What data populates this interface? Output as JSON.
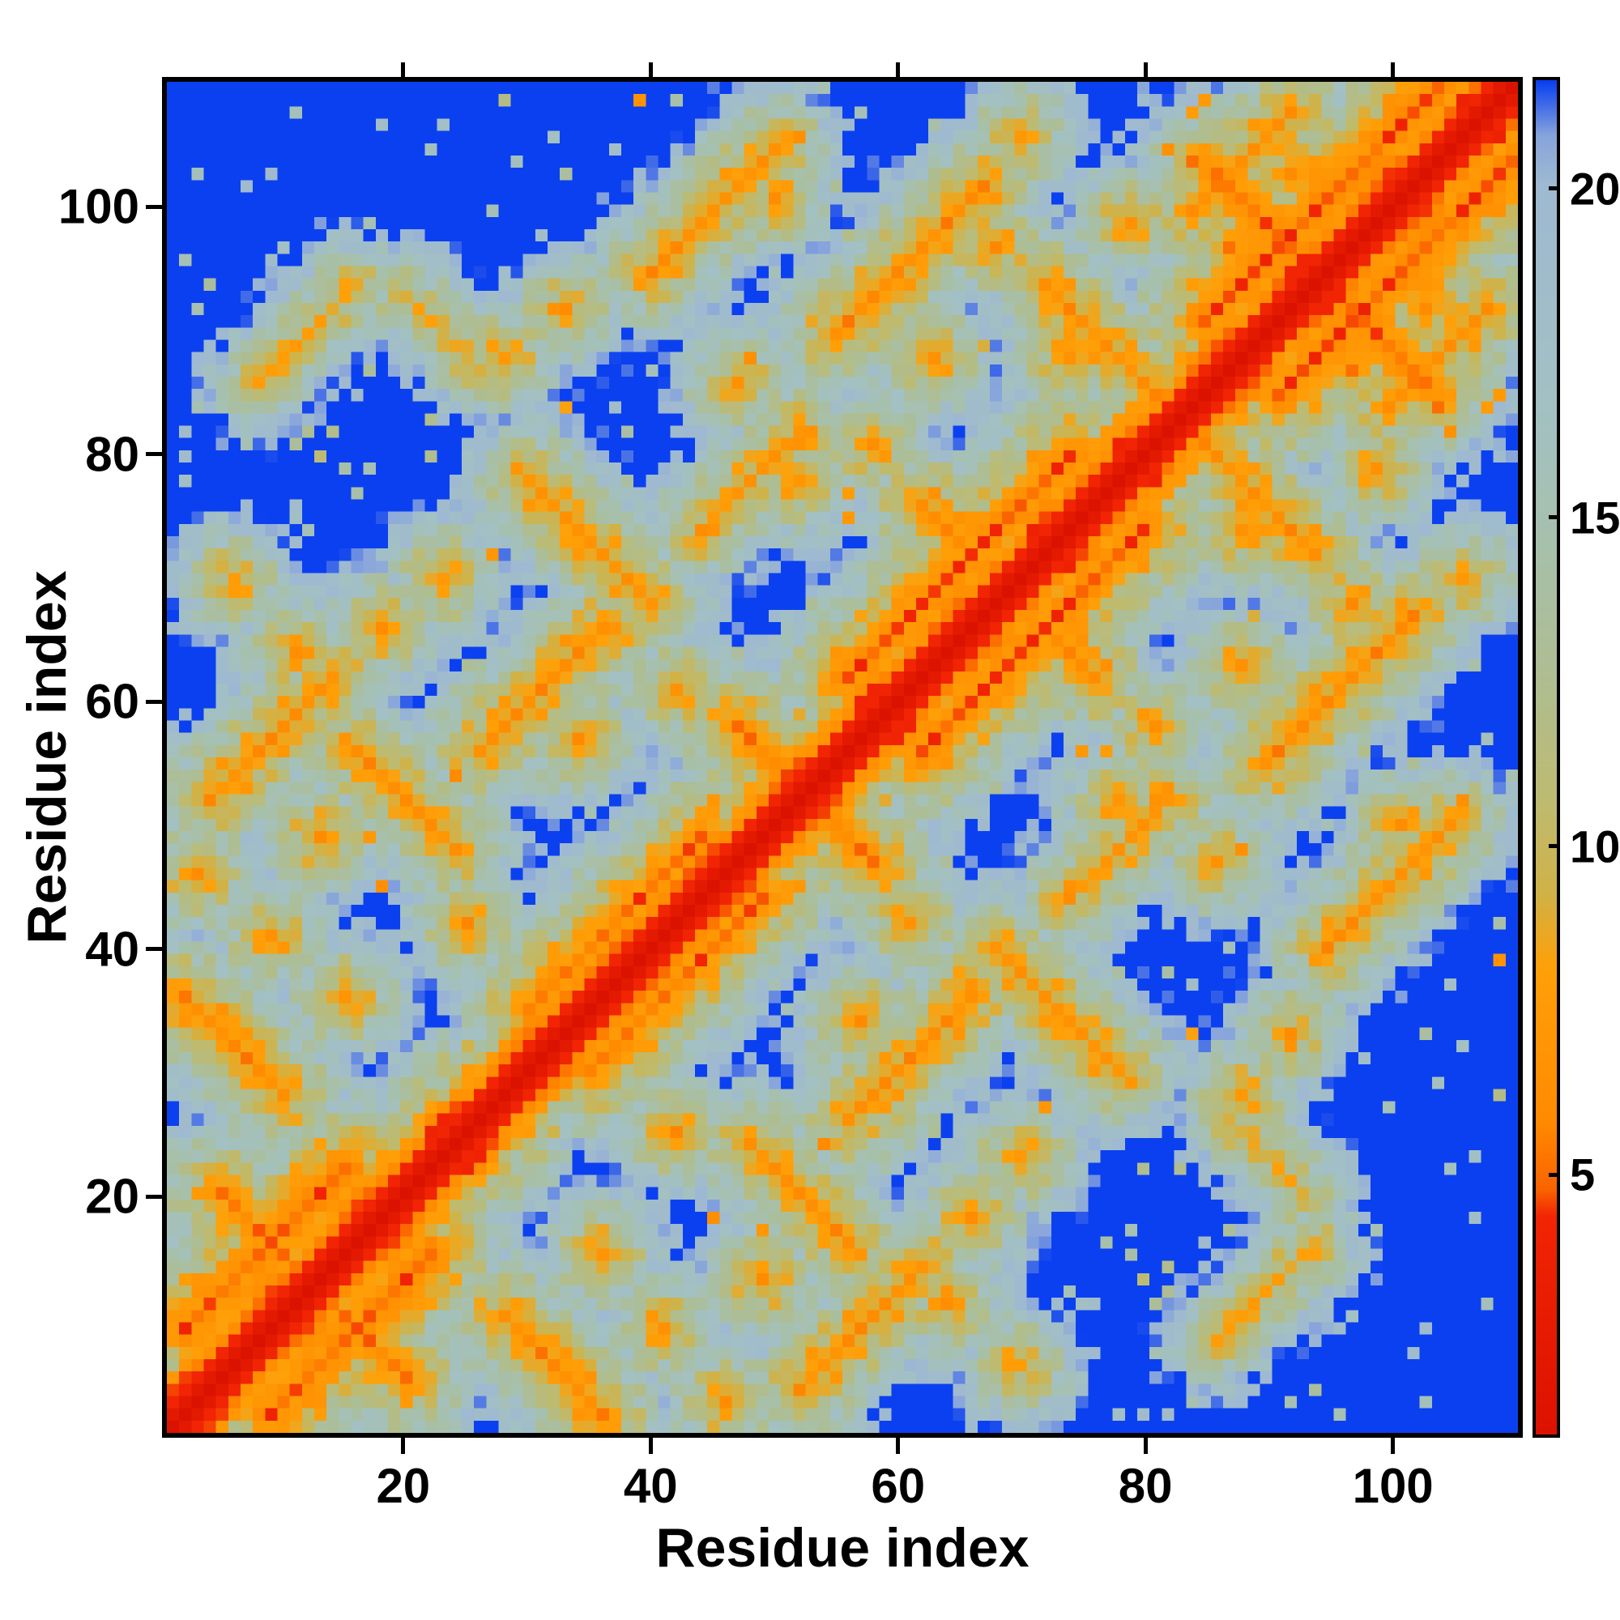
{
  "figure": {
    "background": "#ffffff",
    "frame_color": "#000000"
  },
  "chart_data": {
    "type": "heatmap",
    "title": "",
    "xlabel": "Residue index",
    "ylabel": "Residue index",
    "x_ticks": [
      20,
      40,
      60,
      80,
      100
    ],
    "y_ticks": [
      20,
      40,
      60,
      80,
      100
    ],
    "n_residues": 110,
    "x_range": [
      1,
      110
    ],
    "y_range": [
      1,
      110
    ],
    "origin": "lower-left",
    "grid": false,
    "legend": "none",
    "vmin": 1,
    "vmax": 21.7,
    "colorbar": {
      "position": "right",
      "ticks": [
        5,
        10,
        15,
        20
      ]
    },
    "colormap": {
      "over": "#0b40f0",
      "stops": [
        [
          0.0,
          "#dc1200"
        ],
        [
          0.16,
          "#f12404"
        ],
        [
          0.18,
          "#fa6300"
        ],
        [
          0.23,
          "#ff8a00"
        ],
        [
          0.345,
          "#ffa008"
        ],
        [
          0.4,
          "#d0b248"
        ],
        [
          0.47,
          "#bdbb72"
        ],
        [
          0.56,
          "#aebd92"
        ],
        [
          0.66,
          "#a7c0ac"
        ],
        [
          0.76,
          "#a3c0c3"
        ],
        [
          0.925,
          "#9eb9d1"
        ],
        [
          0.96,
          "#87a4dc"
        ],
        [
          1.0,
          "#0b40f0"
        ]
      ]
    },
    "matrix_model": {
      "description": "symmetric residue-residue distance map: red band along the main diagonal, orange/khaki/grey halo widening to ~±11 residues, solid blue beyond the colour-scale maximum, with scattered long-range contact patches",
      "band_coeff": 2.2,
      "band_exponent": 0.95,
      "cutoff": 46,
      "segments": [
        [
          2,
          9,
          13,
          1,
          4.6,
          2.1
        ],
        [
          30,
          35,
          14,
          1,
          5.2,
          2.2
        ],
        [
          56,
          62,
          18,
          1,
          4.8,
          2.1
        ],
        [
          85,
          91,
          20,
          1,
          4.6,
          2.0
        ],
        [
          5,
          20,
          8,
          -1,
          5.5,
          2.2
        ],
        [
          48,
          57,
          10,
          -1,
          5.4,
          2.2
        ],
        [
          62,
          76,
          8,
          -1,
          6.0,
          2.3
        ],
        [
          86,
          103,
          15,
          -1,
          5.0,
          2.0
        ],
        [
          2,
          36,
          8,
          -1,
          6.0,
          2.3
        ],
        [
          4,
          52,
          10,
          1,
          6.3,
          2.4
        ],
        [
          16,
          56,
          8,
          -1,
          6.2,
          2.4
        ],
        [
          26,
          56,
          10,
          1,
          6.3,
          2.3
        ],
        [
          30,
          78,
          10,
          -1,
          6.4,
          2.4
        ],
        [
          44,
          74,
          8,
          1,
          6.8,
          2.5
        ],
        [
          40,
          95,
          10,
          1,
          6.4,
          2.4
        ],
        [
          55,
          90,
          12,
          1,
          6.0,
          2.3
        ],
        [
          72,
          94,
          10,
          -1,
          6.4,
          2.4
        ],
        [
          84,
          100,
          8,
          1,
          6.2,
          2.4
        ],
        [
          8,
          86,
          8,
          1,
          8.3,
          2.6
        ],
        [
          20,
          93,
          6,
          -1,
          8.6,
          2.6
        ]
      ],
      "contacts": [
        [
          3,
          46,
          6.2
        ],
        [
          9,
          41,
          6.4
        ],
        [
          13,
          49,
          6.2
        ],
        [
          18,
          66,
          6.4
        ],
        [
          23,
          70,
          6.6
        ],
        [
          28,
          88,
          6.6
        ],
        [
          34,
          57,
          6.0
        ],
        [
          37,
          66,
          6.4
        ],
        [
          42,
          61,
          6.2
        ],
        [
          47,
          86,
          6.6
        ],
        [
          52,
          78,
          6.4
        ],
        [
          58,
          81,
          6.2
        ],
        [
          63,
          88,
          6.4
        ],
        [
          68,
          97,
          6.2
        ],
        [
          74,
          88,
          6.0
        ],
        [
          79,
          99,
          6.4
        ],
        [
          87,
          97,
          5.8
        ],
        [
          92,
          103,
          6.0
        ],
        [
          15,
          36,
          6.2
        ],
        [
          25,
          42,
          6.4
        ],
        [
          6,
          70,
          7.0
        ],
        [
          11,
          64,
          6.8
        ],
        [
          33,
          92,
          6.8
        ],
        [
          50,
          101,
          6.8
        ],
        [
          70,
          106,
          6.6
        ]
      ]
    }
  }
}
